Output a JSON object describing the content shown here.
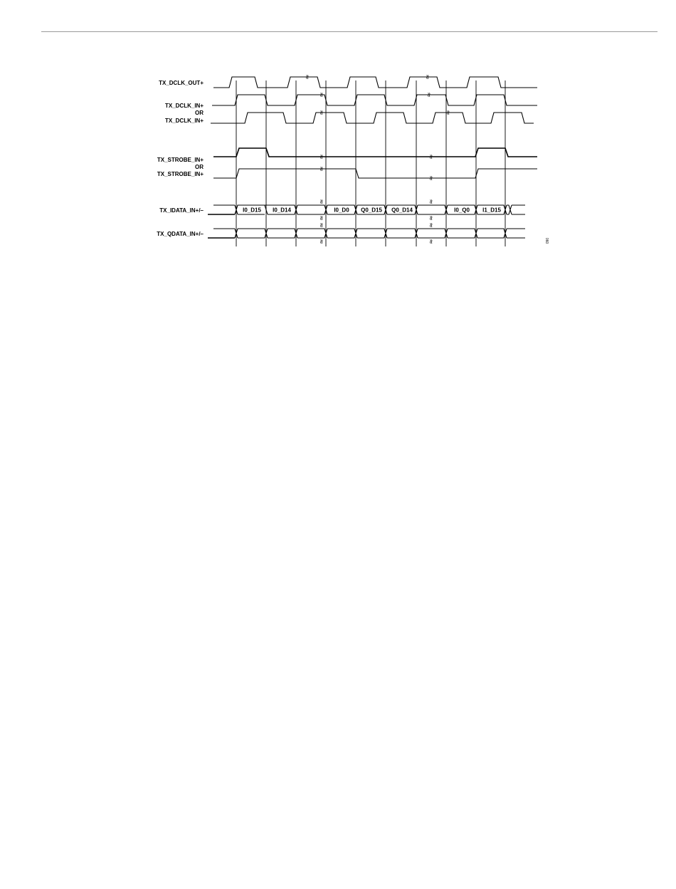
{
  "diagram": {
    "signals": [
      {
        "label": "TX_DCLK_OUT+"
      },
      {
        "label": "TX_DCLK_IN+"
      },
      {
        "label": "OR"
      },
      {
        "label": "TX_DCLK_IN+"
      },
      {
        "label": "TX_STROBE_IN+"
      },
      {
        "label": "OR"
      },
      {
        "label": "TX_STROBE_IN+"
      },
      {
        "label": "TX_IDATA_IN+/–"
      },
      {
        "label": "TX_QDATA_IN+/–"
      }
    ],
    "idata_words": [
      "I0_D15",
      "I0_D14",
      "",
      "I0_D0",
      "Q0_D15",
      "Q0_D14",
      "",
      "I0_Q0",
      "I1_D15"
    ],
    "break_symbol": "≈",
    "figure_number": "060"
  }
}
